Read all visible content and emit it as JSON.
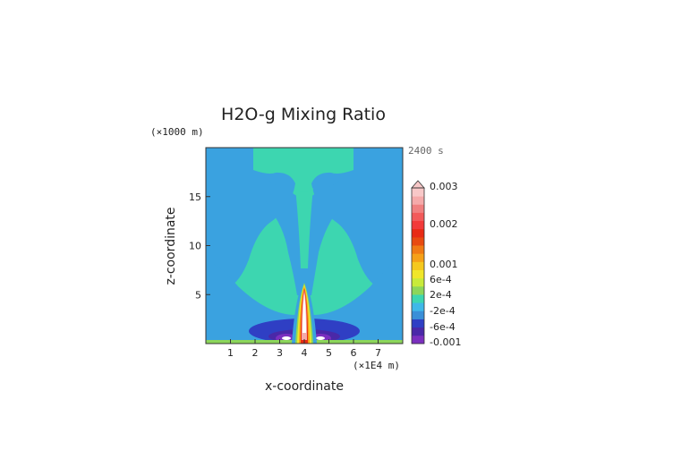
{
  "chart_data": {
    "type": "heatmap",
    "title": "H2O-g Mixing Ratio",
    "xlabel": "x-coordinate",
    "ylabel": "z-coordinate",
    "x_unit": "(×1E4 m)",
    "y_unit": "(×1000 m)",
    "time_label": "2400 s",
    "xlim": [
      0,
      8
    ],
    "ylim": [
      0,
      20
    ],
    "x_ticks": [
      "1",
      "2",
      "3",
      "4",
      "5",
      "6",
      "7"
    ],
    "y_ticks": [
      "5",
      "10",
      "15"
    ],
    "colorbar": {
      "labels": [
        "0.003",
        "0.002",
        "0.001",
        "6e-4",
        "2e-4",
        "-2e-4",
        "-6e-4",
        "-0.001"
      ],
      "colors": [
        "#7b2fbf",
        "#4a28a8",
        "#2f3fc4",
        "#3a8fd8",
        "#3fb8e8",
        "#3dd6b0",
        "#8cd65a",
        "#c8ea3a",
        "#f0e62a",
        "#f5c81e",
        "#f5a018",
        "#f07a14",
        "#e84a10",
        "#e82a14",
        "#f23a3a",
        "#f25a5a",
        "#f08080",
        "#f5aaaa",
        "#f8c8c8"
      ]
    },
    "background_level": "-2e-4 to 2e-4",
    "upper_region_level": "-6e-4 to -2e-4",
    "plume_peak_level": "0.003",
    "plume_center_x": 4,
    "plume_top_z": 6
  }
}
